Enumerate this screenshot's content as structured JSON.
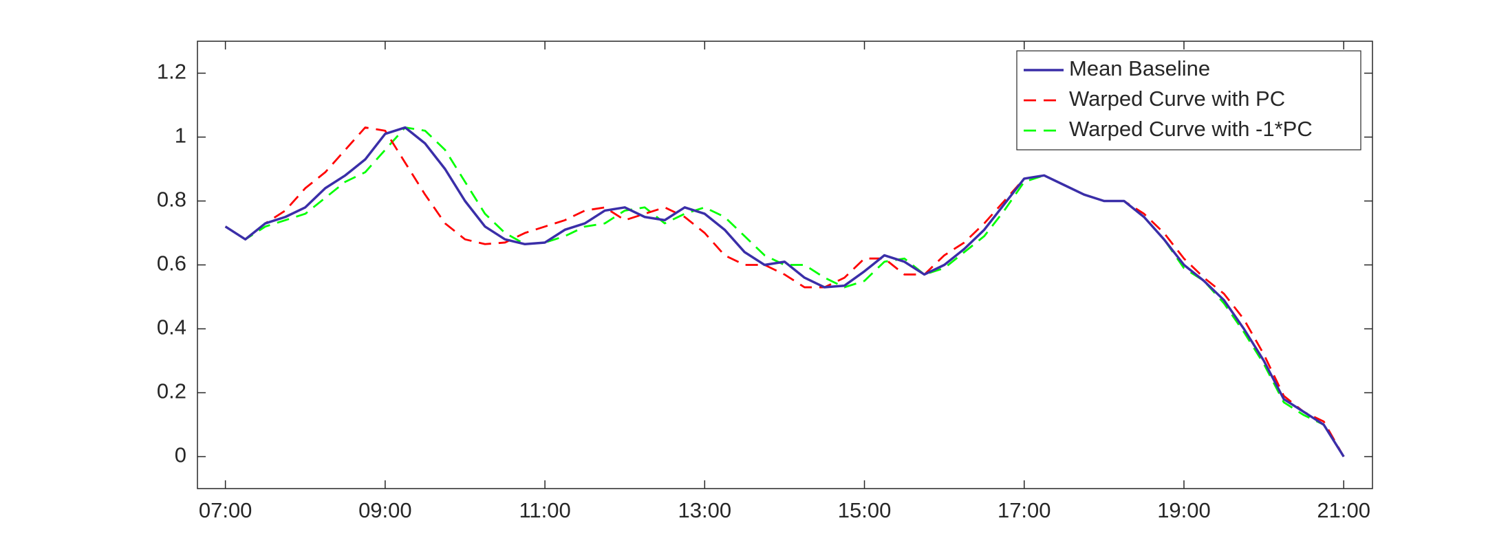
{
  "chart_data": {
    "type": "line",
    "x": [
      7,
      7.25,
      7.5,
      7.75,
      8,
      8.25,
      8.5,
      8.75,
      9,
      9.25,
      9.5,
      9.75,
      10,
      10.25,
      10.5,
      10.75,
      11,
      11.25,
      11.5,
      11.75,
      12,
      12.25,
      12.5,
      12.75,
      13,
      13.25,
      13.5,
      13.75,
      14,
      14.25,
      14.5,
      14.75,
      15,
      15.25,
      15.5,
      15.75,
      16,
      16.25,
      16.5,
      16.75,
      17,
      17.25,
      17.5,
      17.75,
      18,
      18.25,
      18.5,
      18.75,
      19,
      19.25,
      19.5,
      19.75,
      20,
      20.25,
      20.5,
      20.75,
      21
    ],
    "series": [
      {
        "name": "Mean Baseline",
        "color": "#3a2ea8",
        "line_style": "solid",
        "values": [
          0.72,
          0.68,
          0.73,
          0.75,
          0.78,
          0.84,
          0.88,
          0.93,
          1.01,
          1.03,
          0.98,
          0.9,
          0.8,
          0.72,
          0.68,
          0.665,
          0.67,
          0.71,
          0.73,
          0.77,
          0.78,
          0.75,
          0.74,
          0.78,
          0.76,
          0.71,
          0.64,
          0.6,
          0.61,
          0.56,
          0.53,
          0.535,
          0.58,
          0.63,
          0.61,
          0.57,
          0.6,
          0.65,
          0.71,
          0.79,
          0.87,
          0.88,
          0.85,
          0.82,
          0.8,
          0.8,
          0.75,
          0.68,
          0.6,
          0.55,
          0.49,
          0.4,
          0.3,
          0.18,
          0.14,
          0.1,
          0.0
        ]
      },
      {
        "name": "Warped Curve with PC",
        "color": "#ff0000",
        "line_style": "dashed",
        "values": [
          0.72,
          0.68,
          0.73,
          0.77,
          0.84,
          0.89,
          0.96,
          1.03,
          1.02,
          0.92,
          0.82,
          0.73,
          0.68,
          0.665,
          0.67,
          0.7,
          0.72,
          0.74,
          0.77,
          0.78,
          0.74,
          0.76,
          0.78,
          0.75,
          0.7,
          0.63,
          0.6,
          0.6,
          0.57,
          0.53,
          0.53,
          0.56,
          0.62,
          0.62,
          0.57,
          0.57,
          0.63,
          0.67,
          0.73,
          0.8,
          0.87,
          0.88,
          0.85,
          0.82,
          0.8,
          0.8,
          0.76,
          0.7,
          0.62,
          0.56,
          0.51,
          0.43,
          0.32,
          0.19,
          0.14,
          0.11,
          0.0
        ]
      },
      {
        "name": "Warped Curve with -1*PC",
        "color": "#00ff00",
        "line_style": "dashed",
        "values": [
          0.72,
          0.68,
          0.72,
          0.74,
          0.76,
          0.81,
          0.86,
          0.89,
          0.96,
          1.03,
          1.02,
          0.96,
          0.86,
          0.76,
          0.7,
          0.665,
          0.67,
          0.69,
          0.72,
          0.73,
          0.77,
          0.78,
          0.73,
          0.76,
          0.78,
          0.75,
          0.69,
          0.63,
          0.6,
          0.6,
          0.56,
          0.53,
          0.55,
          0.61,
          0.62,
          0.57,
          0.59,
          0.64,
          0.69,
          0.77,
          0.86,
          0.88,
          0.85,
          0.82,
          0.8,
          0.8,
          0.75,
          0.68,
          0.59,
          0.55,
          0.48,
          0.39,
          0.29,
          0.17,
          0.13,
          0.1,
          0.0
        ]
      }
    ],
    "xlim": [
      6.65,
      21.36
    ],
    "xticks": [
      {
        "value": 7,
        "label": "07:00"
      },
      {
        "value": 9,
        "label": "09:00"
      },
      {
        "value": 11,
        "label": "11:00"
      },
      {
        "value": 13,
        "label": "13:00"
      },
      {
        "value": 15,
        "label": "15:00"
      },
      {
        "value": 17,
        "label": "17:00"
      },
      {
        "value": 19,
        "label": "19:00"
      },
      {
        "value": 21,
        "label": "21:00"
      }
    ],
    "ylim": [
      -0.1,
      1.3
    ],
    "yticks": [
      0,
      0.2,
      0.4,
      0.6,
      0.8,
      1,
      1.2
    ],
    "legend": "upper right"
  }
}
